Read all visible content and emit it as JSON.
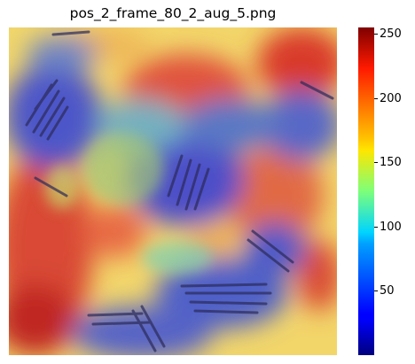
{
  "title": "pos_2_frame_80_2_aug_5.png",
  "image": {
    "description_semantic": "heatmap-overlay-on-microscopy-frame"
  },
  "colorbar": {
    "min": 0,
    "max": 255,
    "ticks": [
      "50",
      "100",
      "150",
      "200",
      "250"
    ],
    "tick_values": [
      50,
      100,
      150,
      200,
      250
    ],
    "colormap": "jet"
  }
}
